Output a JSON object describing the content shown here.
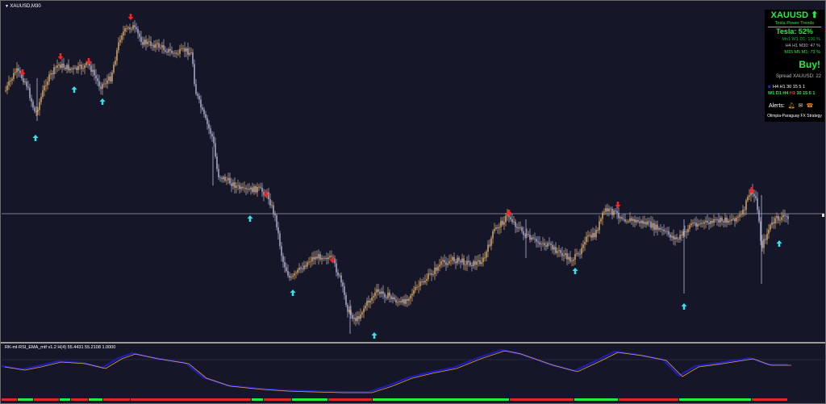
{
  "chart": {
    "symbol_title": "XAUUSD,M30",
    "indicator_title": "RK-ml-RSI_EMA_mtf v1.2 H(4) 55.4431 55.2108 1.0000"
  },
  "panel": {
    "symbol": "XAUUSD",
    "arrow": "⬆",
    "subtitle": "Tesla Power Trends",
    "tesla": "Tesla: 52%",
    "line1": "Mn1 W1 D1: 100 %",
    "line2": "H4 H1 M30: 47 %",
    "line3": "M15 M5 M1: 73 %",
    "signal": "Buy!",
    "spread": "Spread XAUUSD: 22",
    "tf_row1": "H4 H1 30  15  5  1",
    "tf_row2_green": "W1 D1 H4",
    "tf_row2_red": "H1",
    "tf_row2_rest": "30 15 5 1",
    "alerts": "Alerts:",
    "footer": "Olimpia-Paraguay FX Strategy"
  },
  "colors": {
    "background": "#161629",
    "up_candle": "#e8b36a",
    "down_candle": "#b8b8d8",
    "buy_arrow": "#38e0e8",
    "sell_arrow": "#ff2020",
    "green": "#22ee44",
    "rsi_line": "#1d1dbd",
    "ema_line": "#e0a040"
  }
}
